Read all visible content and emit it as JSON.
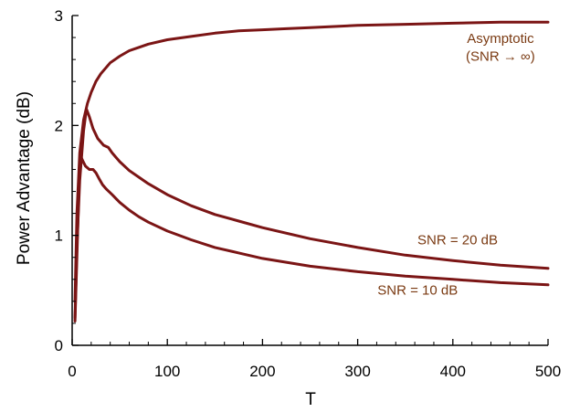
{
  "chart_data": {
    "type": "line",
    "title": "",
    "xlabel": "T",
    "ylabel": "Power Advantage (dB)",
    "xlim": [
      0,
      500
    ],
    "ylim": [
      0,
      3
    ],
    "x_ticks": [
      0,
      100,
      200,
      300,
      400,
      500
    ],
    "y_ticks": [
      0,
      1,
      2,
      3
    ],
    "grid": false,
    "legend": "none",
    "line_color": "#7b1515",
    "annotation_color": "#7a3a12",
    "annotations": [
      {
        "text": "Asymptotic",
        "x": 450,
        "y": 2.75
      },
      {
        "text": "(SNR → ∞)",
        "x": 450,
        "y": 2.59
      },
      {
        "text": "SNR = 20 dB",
        "x": 405,
        "y": 0.92
      },
      {
        "text": "SNR = 10 dB",
        "x": 363,
        "y": 0.46
      }
    ],
    "series": [
      {
        "x": [
          3,
          5,
          8,
          12,
          16,
          20,
          25,
          30,
          40,
          50,
          60,
          70,
          80,
          100,
          125,
          150,
          175,
          200,
          225,
          250,
          300,
          350,
          400,
          450,
          500
        ],
        "values": [
          0.4,
          1.2,
          1.75,
          2.05,
          2.2,
          2.3,
          2.4,
          2.47,
          2.57,
          2.63,
          2.68,
          2.71,
          2.74,
          2.78,
          2.81,
          2.84,
          2.86,
          2.87,
          2.88,
          2.89,
          2.91,
          2.92,
          2.93,
          2.94,
          2.94
        ]
      },
      {
        "x": [
          3,
          5,
          8,
          12,
          15,
          18,
          22,
          27,
          33,
          38,
          42,
          50,
          60,
          70,
          80,
          100,
          125,
          150,
          175,
          200,
          250,
          300,
          350,
          400,
          450,
          500
        ],
        "values": [
          0.25,
          0.9,
          1.5,
          1.95,
          2.15,
          2.08,
          1.97,
          1.88,
          1.82,
          1.8,
          1.75,
          1.67,
          1.59,
          1.53,
          1.47,
          1.37,
          1.27,
          1.19,
          1.13,
          1.07,
          0.97,
          0.89,
          0.82,
          0.77,
          0.73,
          0.7
        ]
      },
      {
        "x": [
          3,
          5,
          7,
          9,
          11,
          14,
          18,
          22,
          25,
          28,
          32,
          36,
          42,
          50,
          60,
          70,
          80,
          100,
          125,
          150,
          175,
          200,
          250,
          300,
          350,
          400,
          450,
          500
        ],
        "values": [
          0.22,
          0.8,
          1.4,
          1.72,
          1.68,
          1.63,
          1.6,
          1.6,
          1.57,
          1.52,
          1.46,
          1.42,
          1.37,
          1.3,
          1.23,
          1.17,
          1.12,
          1.04,
          0.96,
          0.89,
          0.84,
          0.79,
          0.72,
          0.67,
          0.63,
          0.6,
          0.57,
          0.55
        ]
      }
    ]
  }
}
